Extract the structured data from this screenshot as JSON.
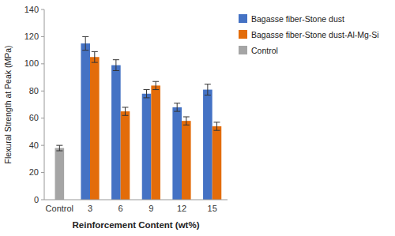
{
  "chart_data": {
    "type": "bar",
    "categories": [
      "Control",
      "3",
      "6",
      "9",
      "12",
      "15"
    ],
    "series": [
      {
        "name": "Bagasse fiber-Stone dust",
        "color": "#4472C4",
        "values": [
          null,
          115,
          99,
          78,
          68,
          81
        ],
        "errors": [
          null,
          5,
          4,
          3,
          3,
          4
        ]
      },
      {
        "name": "Bagasse fiber-Stone dust-Al-Mg-Si",
        "color": "#E36C0A",
        "values": [
          null,
          105,
          65,
          84,
          58,
          54
        ],
        "errors": [
          null,
          4,
          3,
          3,
          3,
          3
        ]
      },
      {
        "name": "Control",
        "color": "#A5A5A5",
        "values": [
          38,
          null,
          null,
          null,
          null,
          null
        ],
        "errors": [
          2,
          null,
          null,
          null,
          null,
          null
        ]
      }
    ],
    "xlabel": "Reinforcement Content (wt%)",
    "ylabel": "Flexural Strength at Peak (MPa)",
    "ylim": [
      0,
      140
    ],
    "yticks": [
      0,
      20,
      40,
      60,
      80,
      100,
      120,
      140
    ],
    "grid": false,
    "legend": "right"
  }
}
